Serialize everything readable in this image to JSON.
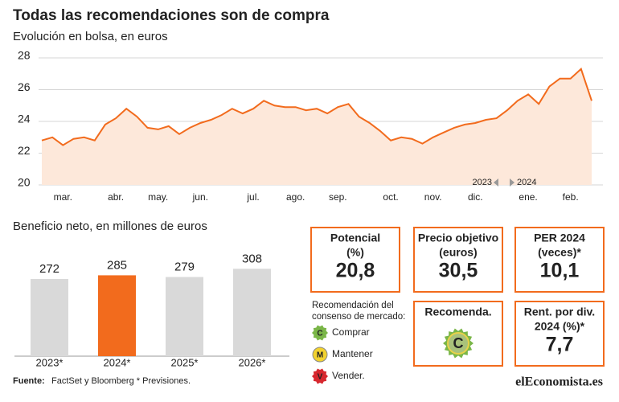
{
  "header": {
    "title": "Todas las recomendaciones son de compra"
  },
  "chart_data": [
    {
      "type": "line",
      "title": "Evolución en bolsa, en euros",
      "color": "#f26b1d",
      "area_color": "#fde8da",
      "categories": [
        null,
        null,
        "mar.",
        null,
        null,
        null,
        null,
        "abr.",
        null,
        null,
        null,
        "may.",
        null,
        null,
        null,
        "jun.",
        null,
        null,
        null,
        null,
        "jul.",
        null,
        null,
        null,
        "ago.",
        null,
        null,
        null,
        "sep.",
        null,
        null,
        null,
        null,
        "oct.",
        null,
        null,
        null,
        "nov.",
        null,
        null,
        null,
        "dic.",
        null,
        null,
        null,
        null,
        "ene.",
        null,
        null,
        null,
        "feb.",
        null,
        null
      ],
      "values": [
        22.8,
        23.0,
        22.5,
        22.9,
        23.0,
        22.8,
        23.8,
        24.2,
        24.8,
        24.3,
        23.6,
        23.5,
        23.7,
        23.2,
        23.6,
        23.9,
        24.1,
        24.4,
        24.8,
        24.5,
        24.8,
        25.3,
        25.0,
        24.9,
        24.9,
        24.7,
        24.8,
        24.5,
        24.9,
        25.1,
        24.3,
        23.9,
        23.4,
        22.8,
        23.0,
        22.9,
        22.6,
        23.0,
        23.3,
        23.6,
        23.8,
        23.9,
        24.1,
        24.2,
        24.7,
        25.3,
        25.7,
        25.1,
        26.2,
        26.7,
        26.7,
        27.3,
        25.3
      ],
      "ylim": [
        20,
        28
      ],
      "yticks": [
        20,
        22,
        24,
        26,
        28
      ],
      "grid": true,
      "year_markers": [
        "2023",
        "2024"
      ]
    },
    {
      "type": "bar",
      "title": "Beneficio neto, en millones de euros",
      "categories": [
        "2023*",
        "2024*",
        "2025*",
        "2026*"
      ],
      "values": [
        272,
        285,
        279,
        308
      ],
      "colors": [
        "#d9d9d9",
        "#f26b1d",
        "#d9d9d9",
        "#d9d9d9"
      ]
    }
  ],
  "metrics": [
    {
      "label": [
        "Potencial",
        "(%)"
      ],
      "value": "20,8"
    },
    {
      "label": [
        "Precio objetivo",
        "(euros)"
      ],
      "value": "30,5"
    },
    {
      "label": [
        "PER 2024",
        "(veces)*"
      ],
      "value": "10,1"
    },
    {
      "label": [
        "Recomenda."
      ],
      "value": "C"
    },
    {
      "label": [
        "Rent. por div.",
        "2024 (%)*"
      ],
      "value": "7,7"
    }
  ],
  "legend": {
    "title": [
      "Recomendación del",
      "consenso de mercado:"
    ],
    "items": [
      {
        "letter": "C",
        "label": "Comprar",
        "color": "#7ab648"
      },
      {
        "letter": "M",
        "label": "Mantener",
        "color": "#f2d22e"
      },
      {
        "letter": "V",
        "label": "Vender.",
        "color": "#d7282f"
      }
    ]
  },
  "footer": {
    "source_label": "Fuente:",
    "source": "FactSet y Bloomberg  * Previsiones.",
    "logo": "elEconomista.es"
  }
}
